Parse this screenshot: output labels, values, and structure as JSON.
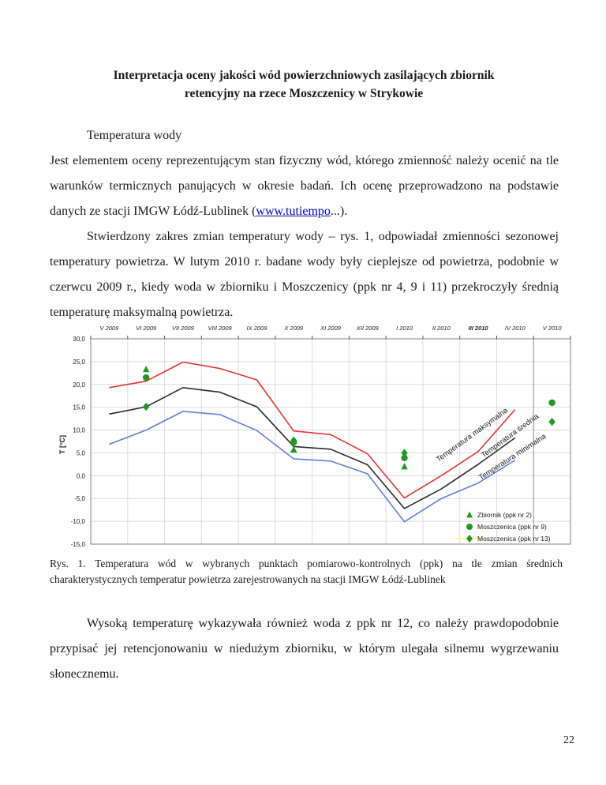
{
  "page": {
    "title_line1": "Interpretacja oceny jakości wód powierzchniowych zasilających zbiornik",
    "title_line2": "retencyjny na rzece Moszczenicy w Strykowie",
    "paragraphs": {
      "p1": "Temperatura wody",
      "p2_pre": "Jest elementem oceny reprezentującym stan fizyczny wód, którego zmienność należy ocenić na tle warunków termicznych panujących w okresie badań. Ich ocenę przeprowadzono na podstawie danych ze stacji IMGW Łódź-Lublinek (",
      "p2_link": "www.tutiempo",
      "p2_post": "...).",
      "p3": "Stwierdzony zakres zmian temperatury wody – rys. 1, odpowiadał zmienności sezonowej temperatury powietrza. W lutym 2010 r. badane wody były cieplejsze od powietrza, podobnie w czerwcu 2009 r., kiedy woda w zbiorniku i Moszczenicy (ppk nr 4, 9 i 11) przekroczyły średnią temperaturę maksymalną powietrza.",
      "p4": "Wysoką temperaturę wykazywała również woda z ppk nr 12, co należy prawdopodobnie przypisać jej retencjonowaniu w niedużym zbiorniku, w którym ulegała silnemu wygrzewaniu słonecznemu."
    },
    "caption": "Rys. 1. Temperatura wód w wybranych punktach pomiarowo-kontrolnych (ppk) na tle zmian średnich charakterystycznych temperatur powietrza zarejestrowanych na stacji IMGW Łódź-Lublinek",
    "page_number": "22"
  },
  "chart_data": {
    "type": "line",
    "title": "",
    "xlabel": "",
    "ylabel": "T [°C]",
    "ylim": [
      -15,
      30
    ],
    "ytick_step": 5,
    "grid": true,
    "legend_position": "bottom-right-inside",
    "bold_category": "III 2010",
    "categories": [
      "V 2009",
      "VI 2009",
      "VII 2009",
      "VIII 2009",
      "IX 2009",
      "X 2009",
      "XI 2009",
      "XII 2009",
      "I 2010",
      "II 2010",
      "III 2010",
      "IV 2010",
      "V 2010"
    ],
    "series": [
      {
        "name": "Temperatura maksymalna",
        "color": "#e23434",
        "values": [
          19.3,
          20.7,
          24.9,
          23.5,
          21.0,
          9.8,
          9.0,
          4.8,
          -4.9,
          0.0,
          5.3,
          14.5,
          null
        ]
      },
      {
        "name": "Temperatura średnia",
        "color": "#2b2b2b",
        "values": [
          13.5,
          15.1,
          19.3,
          18.3,
          15.1,
          6.4,
          5.8,
          2.4,
          -7.2,
          -2.9,
          2.5,
          8.3,
          null
        ]
      },
      {
        "name": "Temperatura minimalna",
        "color": "#627fdb",
        "values": [
          6.9,
          10.0,
          14.1,
          13.4,
          9.9,
          3.7,
          3.2,
          0.4,
          -10.1,
          -5.0,
          -1.6,
          3.4,
          null
        ]
      }
    ],
    "point_series": [
      {
        "name": "Zbiornik (ppk nr 2)",
        "marker": "triangle",
        "color": "#1e9b1e",
        "points": [
          {
            "x": 1,
            "y": 23.3
          },
          {
            "x": 5,
            "y": 5.7
          },
          {
            "x": 8,
            "y": 2.0
          }
        ]
      },
      {
        "name": "Moszczenica (ppk nr 9)",
        "marker": "circle",
        "color": "#1e9b1e",
        "points": [
          {
            "x": 1,
            "y": 21.5
          },
          {
            "x": 5,
            "y": 7.3
          },
          {
            "x": 8,
            "y": 3.9
          },
          {
            "x": 12,
            "y": 16.0
          }
        ]
      },
      {
        "name": "Moszczenica (ppk nr 13)",
        "marker": "diamond",
        "color": "#1e9b1e",
        "legend_line_color": "#ffff99",
        "points": [
          {
            "x": 1,
            "y": 15.1
          },
          {
            "x": 5,
            "y": 7.7
          },
          {
            "x": 8,
            "y": 5.0
          },
          {
            "x": 12,
            "y": 11.8
          }
        ]
      }
    ]
  }
}
